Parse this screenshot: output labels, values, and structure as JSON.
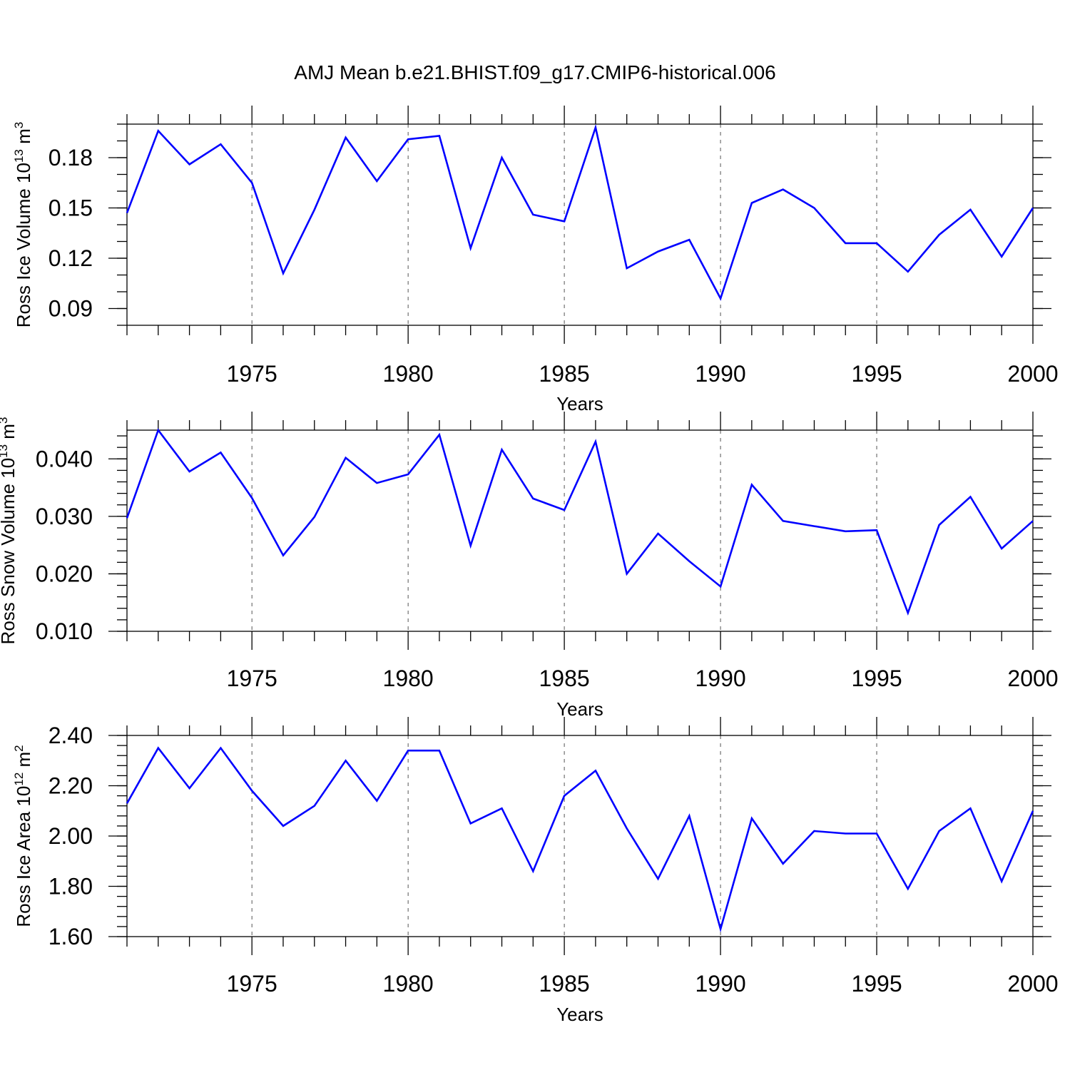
{
  "title": "AMJ Mean b.e21.BHIST.f09_g17.CMIP6-historical.006",
  "colors": {
    "line": "#0000ff",
    "frame": "#000000",
    "grid": "#555555"
  },
  "chart_data": [
    {
      "type": "line",
      "xlabel": "Years",
      "ylabel": {
        "text": "Ross Ice Volume 10",
        "sup": "13",
        "unit": " m",
        "unit_sup": "3"
      },
      "x_ticks": [
        1975,
        1980,
        1985,
        1990,
        1995,
        2000
      ],
      "x_tick_labels": [
        "1975",
        "1980",
        "1985",
        "1990",
        "1995",
        "2000"
      ],
      "xlim": [
        1971,
        2000
      ],
      "ylim": [
        0.08,
        0.2
      ],
      "y_ticks": [
        0.09,
        0.12,
        0.15,
        0.18
      ],
      "y_tick_labels": [
        "0.09",
        "0.12",
        "0.15",
        "0.18"
      ],
      "y_minor_step": 0.01,
      "vertical_grid": true,
      "x": [
        1971,
        1972,
        1973,
        1974,
        1975,
        1976,
        1977,
        1978,
        1979,
        1980,
        1981,
        1982,
        1983,
        1984,
        1985,
        1986,
        1987,
        1988,
        1989,
        1990,
        1991,
        1992,
        1993,
        1994,
        1995,
        1996,
        1997,
        1998,
        1999,
        2000
      ],
      "series": [
        {
          "values": [
            0.147,
            0.196,
            0.176,
            0.188,
            0.165,
            0.111,
            0.149,
            0.192,
            0.166,
            0.191,
            0.193,
            0.126,
            0.18,
            0.146,
            0.142,
            0.198,
            0.114,
            0.124,
            0.131,
            0.096,
            0.153,
            0.161,
            0.15,
            0.129,
            0.129,
            0.112,
            0.134,
            0.149,
            0.121,
            0.15
          ]
        }
      ]
    },
    {
      "type": "line",
      "xlabel": "Years",
      "ylabel": {
        "text": "Ross Snow Volume 10",
        "sup": "13",
        "unit": " m",
        "unit_sup": "3"
      },
      "x_ticks": [
        1975,
        1980,
        1985,
        1990,
        1995,
        2000
      ],
      "x_tick_labels": [
        "1975",
        "1980",
        "1985",
        "1990",
        "1995",
        "2000"
      ],
      "xlim": [
        1971,
        2000
      ],
      "ylim": [
        0.01,
        0.045
      ],
      "y_ticks": [
        0.01,
        0.02,
        0.03,
        0.04
      ],
      "y_tick_labels": [
        "0.010",
        "0.020",
        "0.030",
        "0.040"
      ],
      "y_minor_step": 0.002,
      "vertical_grid": true,
      "x": [
        1971,
        1972,
        1973,
        1974,
        1975,
        1976,
        1977,
        1978,
        1979,
        1980,
        1981,
        1982,
        1983,
        1984,
        1985,
        1986,
        1987,
        1988,
        1989,
        1990,
        1991,
        1992,
        1993,
        1994,
        1995,
        1996,
        1997,
        1998,
        1999,
        2000
      ],
      "series": [
        {
          "values": [
            0.0297,
            0.045,
            0.0378,
            0.0411,
            0.0332,
            0.0232,
            0.0299,
            0.0402,
            0.0358,
            0.0373,
            0.0442,
            0.0249,
            0.0416,
            0.0331,
            0.0311,
            0.043,
            0.02,
            0.027,
            0.0222,
            0.0178,
            0.0355,
            0.0292,
            0.0283,
            0.0274,
            0.0276,
            0.0132,
            0.0285,
            0.0334,
            0.0244,
            0.0292
          ]
        }
      ]
    },
    {
      "type": "line",
      "xlabel": "Years",
      "ylabel": {
        "text": "Ross Ice Area 10",
        "sup": "12",
        "unit": " m",
        "unit_sup": "2"
      },
      "x_ticks": [
        1975,
        1980,
        1985,
        1990,
        1995,
        2000
      ],
      "x_tick_labels": [
        "1975",
        "1980",
        "1985",
        "1990",
        "1995",
        "2000"
      ],
      "xlim": [
        1971,
        2000
      ],
      "ylim": [
        1.6,
        2.4
      ],
      "y_ticks": [
        1.6,
        1.8,
        2.0,
        2.2,
        2.4
      ],
      "y_tick_labels": [
        "1.60",
        "1.80",
        "2.00",
        "2.20",
        "2.40"
      ],
      "y_minor_step": 0.04,
      "vertical_grid": true,
      "x": [
        1971,
        1972,
        1973,
        1974,
        1975,
        1976,
        1977,
        1978,
        1979,
        1980,
        1981,
        1982,
        1983,
        1984,
        1985,
        1986,
        1987,
        1988,
        1989,
        1990,
        1991,
        1992,
        1993,
        1994,
        1995,
        1996,
        1997,
        1998,
        1999,
        2000
      ],
      "series": [
        {
          "values": [
            2.13,
            2.35,
            2.19,
            2.35,
            2.18,
            2.04,
            2.12,
            2.3,
            2.14,
            2.34,
            2.34,
            2.05,
            2.11,
            1.86,
            2.16,
            2.26,
            2.03,
            1.83,
            2.08,
            1.63,
            2.07,
            1.89,
            2.02,
            2.01,
            2.01,
            1.79,
            2.02,
            2.11,
            1.82,
            2.1
          ]
        }
      ]
    }
  ]
}
